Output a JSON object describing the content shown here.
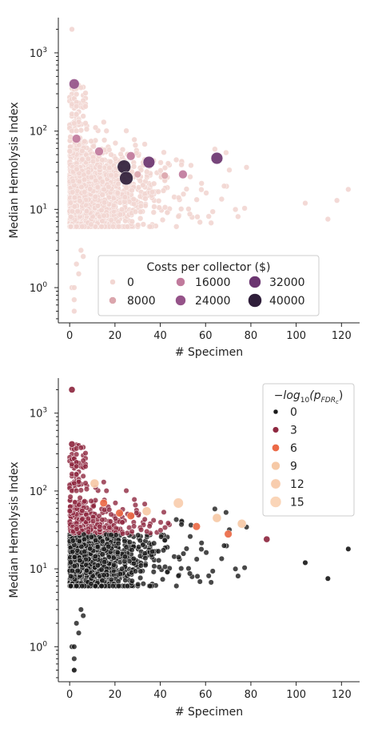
{
  "chart_data": [
    {
      "type": "scatter",
      "xlabel": "# Specimen",
      "ylabel": "Median Hemolysis Index",
      "xlim": [
        -5,
        128
      ],
      "ylim_log10": [
        -0.45,
        3.45
      ],
      "y_scale": "log",
      "x_ticks": [
        0,
        20,
        40,
        60,
        80,
        100,
        120
      ],
      "y_ticks": [
        {
          "value": 1,
          "base": "10",
          "exp": "0"
        },
        {
          "value": 10,
          "base": "10",
          "exp": "1"
        },
        {
          "value": 100,
          "base": "10",
          "exp": "2"
        },
        {
          "value": 1000,
          "base": "10",
          "exp": "3"
        }
      ],
      "legend": {
        "title": "Costs per collector ($)",
        "placement": "lower center",
        "entries": [
          {
            "label": "0",
            "color": "#f2d6d2"
          },
          {
            "label": "8000",
            "color": "#dba6ad"
          },
          {
            "label": "16000",
            "color": "#c07a9c"
          },
          {
            "label": "24000",
            "color": "#955389"
          },
          {
            "label": "32000",
            "color": "#6b3570"
          },
          {
            "label": "40000",
            "color": "#2f1e3a"
          }
        ]
      },
      "highlight_points": [
        {
          "x": 2,
          "y": 400,
          "cost": 24000
        },
        {
          "x": 3,
          "y": 80,
          "cost": 16000
        },
        {
          "x": 13,
          "y": 55,
          "cost": 16000
        },
        {
          "x": 24,
          "y": 35,
          "cost": 40000
        },
        {
          "x": 25,
          "y": 25,
          "cost": 40000
        },
        {
          "x": 27,
          "y": 48,
          "cost": 16000
        },
        {
          "x": 35,
          "y": 40,
          "cost": 32000
        },
        {
          "x": 30,
          "y": 28,
          "cost": 8000
        },
        {
          "x": 42,
          "y": 27,
          "cost": 8000
        },
        {
          "x": 50,
          "y": 28,
          "cost": 16000
        },
        {
          "x": 65,
          "y": 45,
          "cost": 32000
        },
        {
          "x": 1,
          "y": 2000,
          "cost": 0
        },
        {
          "x": 2,
          "y": 0.5,
          "cost": 0
        },
        {
          "x": 104,
          "y": 12,
          "cost": 0
        },
        {
          "x": 114,
          "y": 7.5,
          "cost": 0
        },
        {
          "x": 118,
          "y": 13,
          "cost": 0
        },
        {
          "x": 123,
          "y": 18,
          "cost": 0
        }
      ]
    },
    {
      "type": "scatter",
      "xlabel": "# Specimen",
      "ylabel": "Median Hemolysis Index",
      "xlim": [
        -5,
        128
      ],
      "ylim_log10": [
        -0.45,
        3.45
      ],
      "y_scale": "log",
      "x_ticks": [
        0,
        20,
        40,
        60,
        80,
        100,
        120
      ],
      "y_ticks": [
        {
          "value": 1,
          "base": "10",
          "exp": "0"
        },
        {
          "value": 10,
          "base": "10",
          "exp": "1"
        },
        {
          "value": 100,
          "base": "10",
          "exp": "2"
        },
        {
          "value": 1000,
          "base": "10",
          "exp": "3"
        }
      ],
      "legend": {
        "title": "−log₁₀(p_FDRc)",
        "title_parts": {
          "prefix": "−log",
          "sub1": "10",
          "mid": "(p",
          "sub2": "FDR",
          "sub3": "c",
          "suffix": ")"
        },
        "placement": "upper right",
        "entries": [
          {
            "label": "0",
            "color": "#1a1a1a"
          },
          {
            "label": "3",
            "color": "#8e2840"
          },
          {
            "label": "6",
            "color": "#ec6a47"
          },
          {
            "label": "9",
            "color": "#f6c9a6"
          },
          {
            "label": "12",
            "color": "#f8cdae"
          },
          {
            "label": "15",
            "color": "#fad5b8"
          }
        ]
      },
      "highlight_points": [
        {
          "x": 1,
          "y": 2000,
          "score": 3
        },
        {
          "x": 1,
          "y": 400,
          "score": 3
        },
        {
          "x": 11,
          "y": 125,
          "score": 9
        },
        {
          "x": 15,
          "y": 70,
          "score": 6
        },
        {
          "x": 22,
          "y": 52,
          "score": 6
        },
        {
          "x": 27,
          "y": 48,
          "score": 6
        },
        {
          "x": 34,
          "y": 55,
          "score": 9
        },
        {
          "x": 48,
          "y": 70,
          "score": 12
        },
        {
          "x": 56,
          "y": 35,
          "score": 6
        },
        {
          "x": 65,
          "y": 45,
          "score": 9
        },
        {
          "x": 70,
          "y": 28,
          "score": 6
        },
        {
          "x": 76,
          "y": 38,
          "score": 9
        },
        {
          "x": 87,
          "y": 24,
          "score": 3
        },
        {
          "x": 104,
          "y": 12,
          "score": 0
        },
        {
          "x": 114,
          "y": 7.5,
          "score": 0
        },
        {
          "x": 123,
          "y": 18,
          "score": 0
        },
        {
          "x": 2,
          "y": 0.5,
          "score": 0
        }
      ]
    }
  ]
}
